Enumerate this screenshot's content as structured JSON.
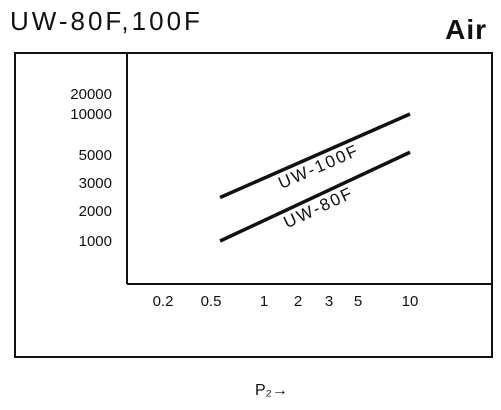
{
  "header": {
    "title": "UW-80F,100F",
    "medium": "Air"
  },
  "chart_data": {
    "type": "line",
    "title": "UW-80F,100F",
    "xlabel": "P₂→",
    "ylabel": "",
    "xscale": "log",
    "yscale": "log",
    "x_tick_labels": [
      "0.2",
      "0.5",
      "1",
      "2",
      "3",
      "5",
      "10"
    ],
    "x_ticks": [
      0.2,
      0.5,
      1,
      2,
      3,
      5,
      10
    ],
    "y_tick_labels": [
      "20000",
      "10000",
      "5000",
      "3000",
      "2000",
      "1000"
    ],
    "y_ticks": [
      20000,
      10000,
      5000,
      3000,
      2000,
      1000
    ],
    "xlim": [
      0.13,
      17
    ],
    "ylim": [
      300,
      26000
    ],
    "grid": false,
    "legend": "none",
    "series": [
      {
        "name": "UW-100F",
        "x": [
          0.5,
          10
        ],
        "y": [
          2200,
          10000
        ]
      },
      {
        "name": "UW-80F",
        "x": [
          0.5,
          10
        ],
        "y": [
          1000,
          5000
        ]
      }
    ]
  }
}
